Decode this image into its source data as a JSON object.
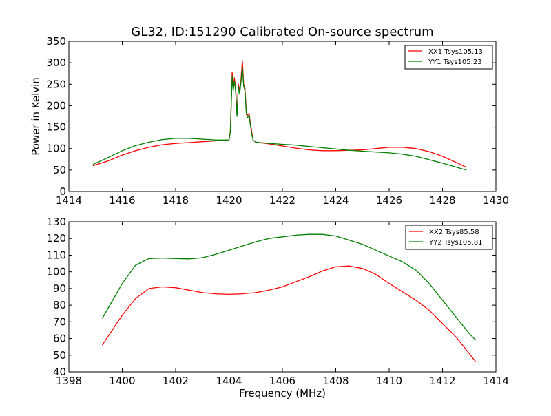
{
  "chart_data": [
    {
      "type": "line",
      "title": "GL32, ID:151290 Calibrated On-source spectrum",
      "xlabel": "",
      "ylabel": "Power in Kelvin",
      "xlim": [
        1414,
        1430
      ],
      "ylim": [
        0,
        350
      ],
      "xticks": [
        1414,
        1416,
        1418,
        1420,
        1422,
        1424,
        1426,
        1428,
        1430
      ],
      "yticks": [
        0,
        50,
        100,
        150,
        200,
        250,
        300,
        350
      ],
      "legend_position": "top-right",
      "series": [
        {
          "name": "XX1 Tsys105.13",
          "color": "#ff0000",
          "x": [
            1414.9,
            1415.5,
            1416,
            1416.5,
            1417,
            1417.5,
            1418,
            1418.5,
            1419,
            1419.5,
            1420,
            1420.05,
            1420.08,
            1420.12,
            1420.16,
            1420.2,
            1420.25,
            1420.3,
            1420.35,
            1420.4,
            1420.45,
            1420.5,
            1420.55,
            1420.6,
            1420.65,
            1420.7,
            1420.75,
            1420.8,
            1420.85,
            1420.9,
            1421,
            1421.5,
            1422,
            1422.5,
            1423,
            1423.5,
            1424,
            1424.5,
            1425,
            1425.5,
            1426,
            1426.5,
            1427,
            1427.5,
            1428,
            1428.5,
            1428.9
          ],
          "values": [
            60,
            72,
            85,
            95,
            103,
            109,
            112,
            114,
            116,
            118,
            120,
            140,
            200,
            278,
            245,
            265,
            240,
            180,
            250,
            235,
            262,
            305,
            250,
            240,
            185,
            178,
            182,
            160,
            140,
            120,
            115,
            111,
            106,
            101,
            97,
            95,
            95,
            96,
            97,
            100,
            103,
            103,
            100,
            93,
            82,
            68,
            56
          ]
        },
        {
          "name": "YY1 Tsys105.23",
          "color": "#007f00",
          "x": [
            1414.9,
            1415.5,
            1416,
            1416.5,
            1417,
            1417.5,
            1418,
            1418.5,
            1419,
            1419.5,
            1420,
            1420.05,
            1420.08,
            1420.12,
            1420.16,
            1420.2,
            1420.25,
            1420.3,
            1420.35,
            1420.4,
            1420.45,
            1420.5,
            1420.55,
            1420.6,
            1420.65,
            1420.7,
            1420.75,
            1420.8,
            1420.85,
            1420.9,
            1421,
            1421.5,
            1422,
            1422.5,
            1423,
            1423.5,
            1424,
            1424.5,
            1425,
            1425.5,
            1426,
            1426.5,
            1427,
            1427.5,
            1428,
            1428.5,
            1428.9
          ],
          "values": [
            63,
            80,
            95,
            107,
            115,
            121,
            124,
            124,
            122,
            120,
            120,
            138,
            195,
            268,
            235,
            258,
            232,
            175,
            245,
            228,
            255,
            290,
            245,
            235,
            180,
            172,
            178,
            155,
            135,
            120,
            115,
            112,
            110,
            108,
            105,
            102,
            99,
            96,
            94,
            92,
            90,
            87,
            82,
            74,
            66,
            57,
            50
          ]
        }
      ]
    },
    {
      "type": "line",
      "title": "",
      "xlabel": "Frequency (MHz)",
      "ylabel": "",
      "xlim": [
        1398,
        1414
      ],
      "ylim": [
        40,
        130
      ],
      "xticks": [
        1398,
        1400,
        1402,
        1404,
        1406,
        1408,
        1410,
        1412,
        1414
      ],
      "yticks": [
        40,
        50,
        60,
        70,
        80,
        90,
        100,
        110,
        120,
        130
      ],
      "legend_position": "top-right",
      "series": [
        {
          "name": "XX2 Tsys85.58",
          "color": "#ff0000",
          "x": [
            1399.25,
            1399.5,
            1400,
            1400.5,
            1401,
            1401.5,
            1402,
            1402.5,
            1403,
            1403.5,
            1404,
            1404.5,
            1405,
            1405.5,
            1406,
            1406.5,
            1407,
            1407.5,
            1408,
            1408.5,
            1409,
            1409.5,
            1410,
            1410.5,
            1411,
            1411.5,
            1412,
            1412.5,
            1413,
            1413.25
          ],
          "values": [
            56,
            62,
            74,
            84,
            90,
            91,
            90.5,
            89,
            87.5,
            86.8,
            86.5,
            86.8,
            87.5,
            89,
            91,
            94,
            97,
            100.5,
            103,
            103.5,
            102,
            98.5,
            93,
            88,
            83,
            77,
            69,
            61,
            51,
            46
          ]
        },
        {
          "name": "YY2 Tsys105.81",
          "color": "#007f00",
          "x": [
            1399.25,
            1399.5,
            1400,
            1400.5,
            1401,
            1401.5,
            1402,
            1402.5,
            1403,
            1403.5,
            1404,
            1404.5,
            1405,
            1405.5,
            1406,
            1406.5,
            1407,
            1407.5,
            1408,
            1408.5,
            1409,
            1409.5,
            1410,
            1410.5,
            1411,
            1411.5,
            1412,
            1412.5,
            1413,
            1413.25
          ],
          "values": [
            72,
            79,
            93,
            104,
            108,
            108.3,
            108,
            107.8,
            108.5,
            110.5,
            113,
            115.5,
            118,
            120,
            121,
            122,
            122.5,
            122.5,
            121.5,
            119,
            116.5,
            113,
            109.5,
            106,
            101,
            93,
            83,
            73,
            63,
            59
          ]
        }
      ]
    }
  ]
}
